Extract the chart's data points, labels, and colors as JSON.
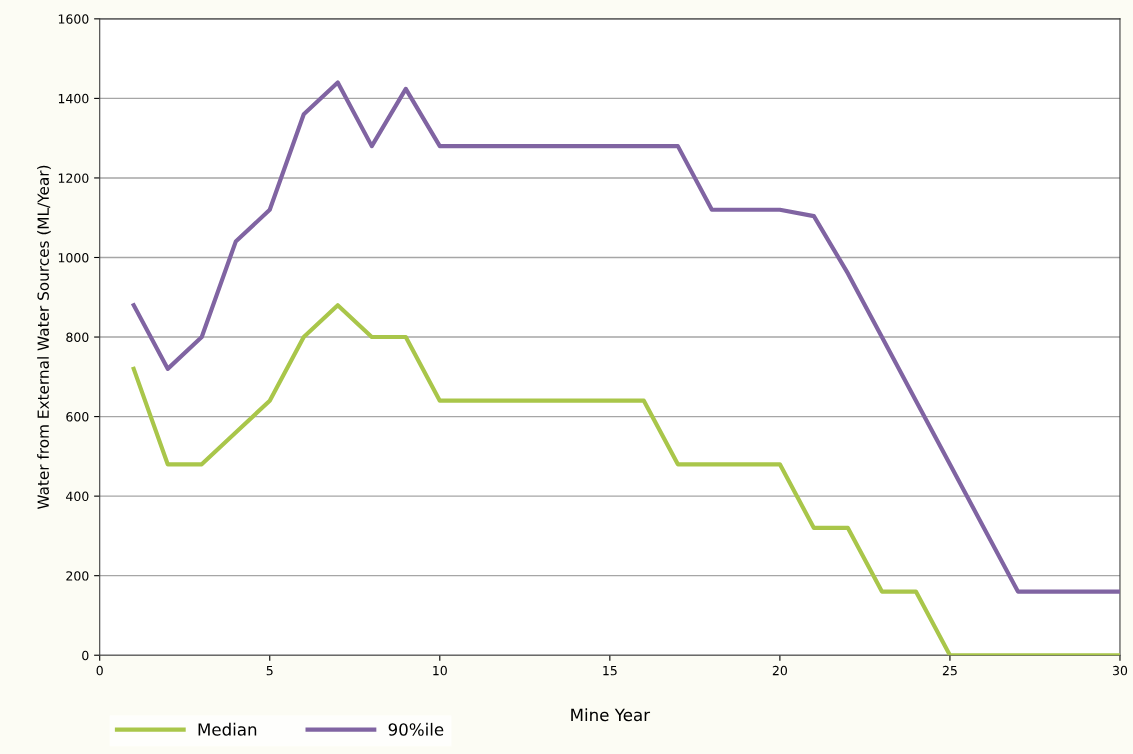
{
  "chart_data": {
    "type": "line",
    "xlabel": "Mine Year",
    "ylabel": "Water from External Water Sources (ML/Year)",
    "x": [
      1,
      2,
      3,
      4,
      5,
      6,
      7,
      8,
      9,
      10,
      11,
      12,
      13,
      14,
      15,
      16,
      17,
      18,
      19,
      20,
      21,
      22,
      23,
      24,
      25,
      26,
      27,
      28,
      29,
      30
    ],
    "series": [
      {
        "name": "Median",
        "color": "#a9c64a",
        "values": [
          720,
          480,
          480,
          560,
          640,
          800,
          880,
          800,
          800,
          640,
          640,
          640,
          640,
          640,
          640,
          640,
          480,
          480,
          480,
          480,
          320,
          320,
          160,
          160,
          0,
          0,
          0,
          0,
          0,
          0
        ]
      },
      {
        "name": "90%ile",
        "color": "#8064a2",
        "values": [
          880,
          720,
          800,
          1040,
          1120,
          1360,
          1440,
          1280,
          1424,
          1280,
          1280,
          1280,
          1280,
          1280,
          1280,
          1280,
          1280,
          1120,
          1120,
          1120,
          1104,
          960,
          800,
          640,
          480,
          320,
          160,
          160,
          160,
          160
        ]
      }
    ],
    "xlim": [
      0,
      30
    ],
    "xticks": [
      0,
      5,
      10,
      15,
      20,
      25,
      30
    ],
    "ylim": [
      0,
      1600
    ],
    "yticks": [
      0,
      200,
      400,
      600,
      800,
      1000,
      1200,
      1400,
      1600
    ],
    "grid": "y",
    "legend": "bottom left",
    "marker": "none",
    "line_style": "solid"
  }
}
